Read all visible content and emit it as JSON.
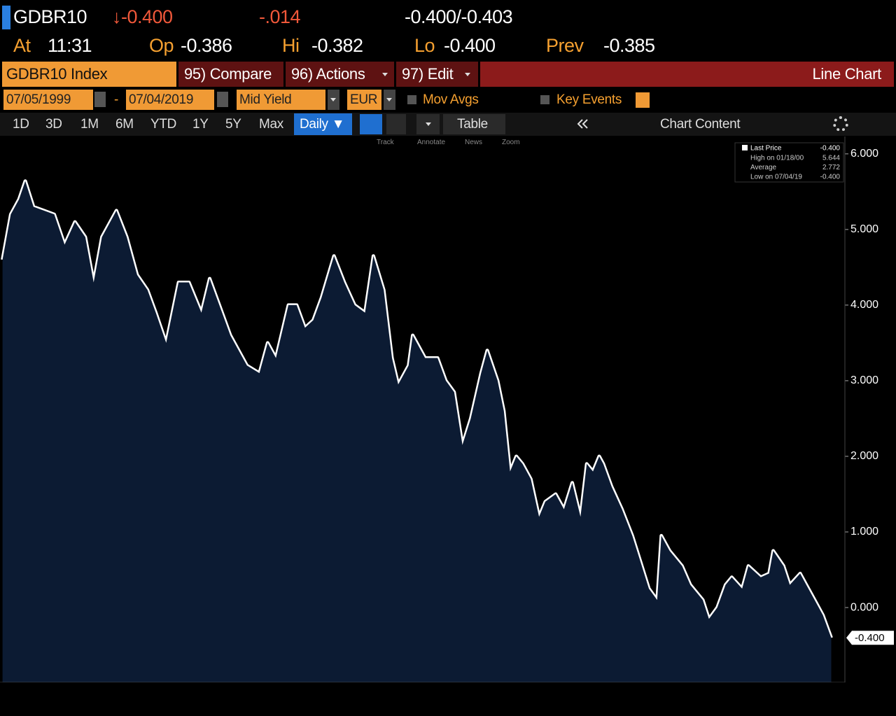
{
  "header": {
    "ticker": "GDBR10",
    "change": "↓-0.400",
    "change_pct": "-.014",
    "bid_ask": "-0.400/-0.403",
    "time_label": "At",
    "time": "11:31",
    "open_label": "Op",
    "open": "-0.386",
    "high_label": "Hi",
    "high": "-0.382",
    "low_label": "Lo",
    "low": "-0.400",
    "prev_label": "Prev",
    "prev": "-0.385"
  },
  "toolbar": {
    "security": "GDBR10 Index",
    "compare": "95) Compare",
    "actions": "96) Actions",
    "edit": "97) Edit",
    "view": "Line Chart",
    "start_date": "07/05/1999",
    "date_sep": "-",
    "end_date": "07/04/2019",
    "field": "Mid Yield",
    "currency": "EUR",
    "mov_avgs": "Mov Avgs",
    "key_events": "Key Events",
    "ranges": [
      "1D",
      "3D",
      "1M",
      "6M",
      "YTD",
      "1Y",
      "5Y",
      "Max"
    ],
    "period": "Daily ▼",
    "table": "Table",
    "chart_content": "Chart Content",
    "tools": [
      "Track",
      "Annotate",
      "News",
      "Zoom"
    ]
  },
  "chart_data": {
    "type": "area",
    "series": [
      {
        "name": "Last Price",
        "color": "#ffffff",
        "fill": "#0c1b33",
        "values": [
          4.6,
          5.2,
          5.4,
          5.64,
          5.3,
          5.25,
          5.2,
          4.8,
          5.1,
          4.9,
          4.3,
          4.9,
          5.25,
          4.9,
          4.4,
          4.2,
          3.9,
          3.5,
          4.3,
          4.3,
          3.9,
          4.35,
          3.9,
          3.6,
          3.2,
          3.1,
          3.5,
          3.3,
          4.0,
          4.0,
          3.7,
          3.8,
          4.1,
          4.65,
          4.3,
          4.0,
          3.9,
          4.65,
          4.2,
          3.3,
          2.95,
          3.2,
          3.6,
          3.3,
          3.3,
          3.0,
          2.85,
          2.15,
          2.5,
          3.1,
          3.4,
          3.0,
          2.6,
          1.8,
          2.0,
          1.9,
          1.7,
          1.2,
          1.4,
          1.5,
          1.3,
          1.65,
          1.2,
          1.9,
          1.8,
          2.0,
          1.9,
          1.6,
          1.3,
          0.95,
          0.6,
          0.25,
          0.1,
          0.95,
          0.75,
          0.55,
          0.3,
          0.1,
          -0.15,
          0.0,
          0.3,
          0.4,
          0.25,
          0.55,
          0.4,
          0.45,
          0.75,
          0.55,
          0.3,
          0.45,
          0.3,
          0.1,
          -0.1,
          -0.4
        ]
      }
    ],
    "x": [
      1999.5,
      1999.7,
      1999.9,
      2000.05,
      2000.25,
      2000.5,
      2000.75,
      2001.0,
      2001.25,
      2001.5,
      2001.7,
      2001.9,
      2002.25,
      2002.5,
      2002.75,
      2003.0,
      2003.2,
      2003.45,
      2003.75,
      2004.0,
      2004.3,
      2004.5,
      2004.8,
      2005.0,
      2005.4,
      2005.7,
      2005.9,
      2006.1,
      2006.4,
      2006.6,
      2006.8,
      2007.0,
      2007.2,
      2007.5,
      2007.75,
      2008.0,
      2008.25,
      2008.45,
      2008.7,
      2008.9,
      2009.05,
      2009.3,
      2009.4,
      2009.7,
      2010.0,
      2010.2,
      2010.4,
      2010.6,
      2010.8,
      2011.05,
      2011.2,
      2011.45,
      2011.6,
      2011.75,
      2011.9,
      2012.05,
      2012.25,
      2012.45,
      2012.6,
      2012.85,
      2013.05,
      2013.25,
      2013.45,
      2013.6,
      2013.75,
      2013.9,
      2014.0,
      2014.2,
      2014.45,
      2014.7,
      2014.9,
      2015.1,
      2015.3,
      2015.4,
      2015.6,
      2015.9,
      2016.1,
      2016.4,
      2016.55,
      2016.75,
      2016.95,
      2017.1,
      2017.35,
      2017.5,
      2017.8,
      2018.0,
      2018.1,
      2018.35,
      2018.5,
      2018.75,
      2018.9,
      2019.1,
      2019.3,
      2019.5
    ],
    "xlim": [
      1999.44,
      2019.83
    ],
    "xticks": [
      2000,
      2001,
      2002,
      2003,
      2004,
      2005,
      2006,
      2007,
      2008,
      2009,
      2010,
      2011,
      2012,
      2013,
      2014,
      2015,
      2016,
      2017,
      2018,
      2019
    ],
    "ylim": [
      -0.99,
      6.23
    ],
    "yticks": [
      {
        "value": 0,
        "label": "0.000"
      },
      {
        "value": 1,
        "label": "1.000"
      },
      {
        "value": 2,
        "label": "2.000"
      },
      {
        "value": 3,
        "label": "3.000"
      },
      {
        "value": 4,
        "label": "4.000"
      },
      {
        "value": 5,
        "label": "5.000"
      },
      {
        "value": 6,
        "label": "6.000"
      }
    ],
    "last_tag": "-0.400",
    "legend_last_value": "-0.400",
    "stats": [
      {
        "label": "High on 01/18/00",
        "value": "5.644"
      },
      {
        "label": "Average",
        "value": "2.772"
      },
      {
        "label": "Low on 07/04/19",
        "value": "-0.400"
      }
    ],
    "grid": false
  }
}
